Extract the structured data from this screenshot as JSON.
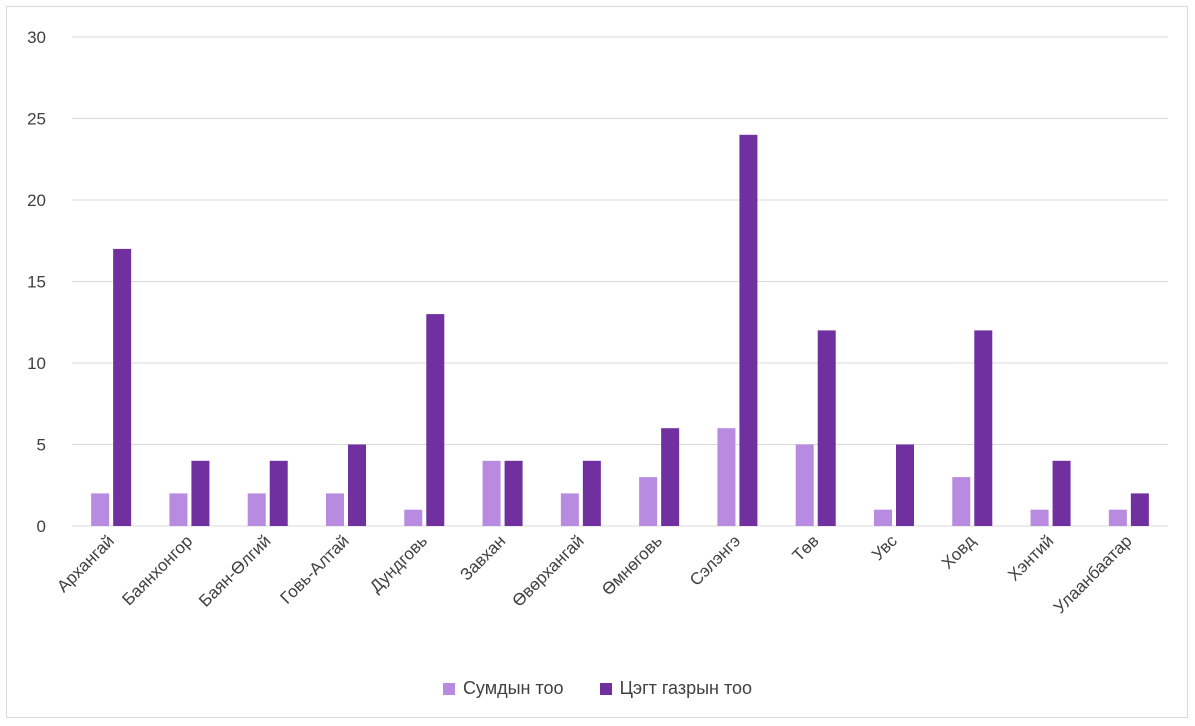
{
  "chart_data": {
    "type": "bar",
    "title": "",
    "xlabel": "",
    "ylabel": "",
    "ylim": [
      0,
      30
    ],
    "yticks": [
      0,
      5,
      10,
      15,
      20,
      25,
      30
    ],
    "grid": true,
    "legend_position": "bottom",
    "categories": [
      "Архангай",
      "Баянхонгор",
      "Баян-Өлгий",
      "Говь-Алтай",
      "Дундговь",
      "Завхан",
      "Өвөрхангай",
      "Өмнөговь",
      "Сэлэнгэ",
      "Төв",
      "Увс",
      "Ховд",
      "Хэнтий",
      "Улаанбаатар"
    ],
    "series": [
      {
        "name": "Сумдын тоо",
        "color": "#b88ae0",
        "values": [
          2,
          2,
          2,
          2,
          1,
          4,
          2,
          3,
          6,
          5,
          1,
          3,
          1,
          1
        ]
      },
      {
        "name": "Цэгт газрын тоо",
        "color": "#7030a0",
        "values": [
          17,
          4,
          4,
          5,
          13,
          4,
          4,
          6,
          24,
          12,
          5,
          12,
          4,
          2
        ]
      }
    ]
  }
}
